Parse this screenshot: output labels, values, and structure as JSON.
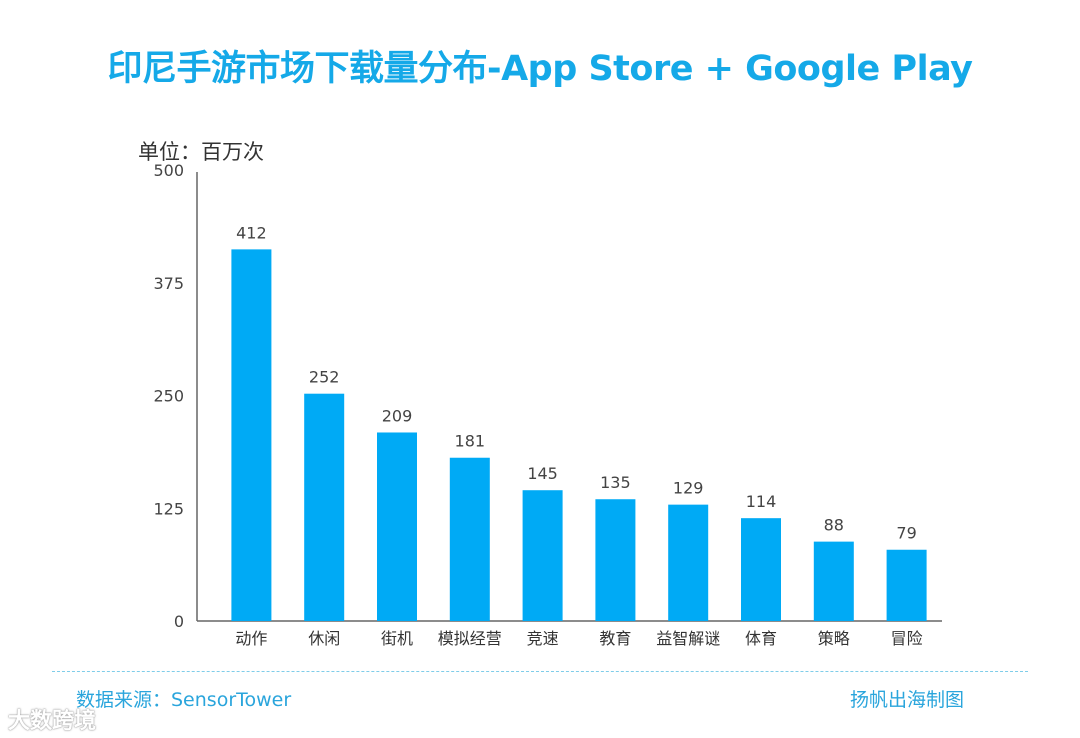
{
  "title": "印尼手游市场下载量分布-App Store + Google Play",
  "unit_label": "单位：百万次",
  "source": "数据来源：SensorTower",
  "credit": "扬帆出海制图",
  "watermark": "大数跨境",
  "colors": {
    "bar": "#00aaf5",
    "title": "#15a9e8"
  },
  "chart_data": {
    "type": "bar",
    "title": "印尼手游市场下载量分布-App Store + Google Play",
    "ylabel": "单位：百万次",
    "categories": [
      "动作",
      "休闲",
      "街机",
      "模拟经营",
      "竞速",
      "教育",
      "益智解谜",
      "体育",
      "策略",
      "冒险"
    ],
    "values": [
      412,
      252,
      209,
      181,
      145,
      135,
      129,
      114,
      88,
      79
    ],
    "ylim": [
      0,
      500
    ],
    "yticks": [
      0,
      125,
      250,
      375,
      500
    ],
    "grid": false
  }
}
